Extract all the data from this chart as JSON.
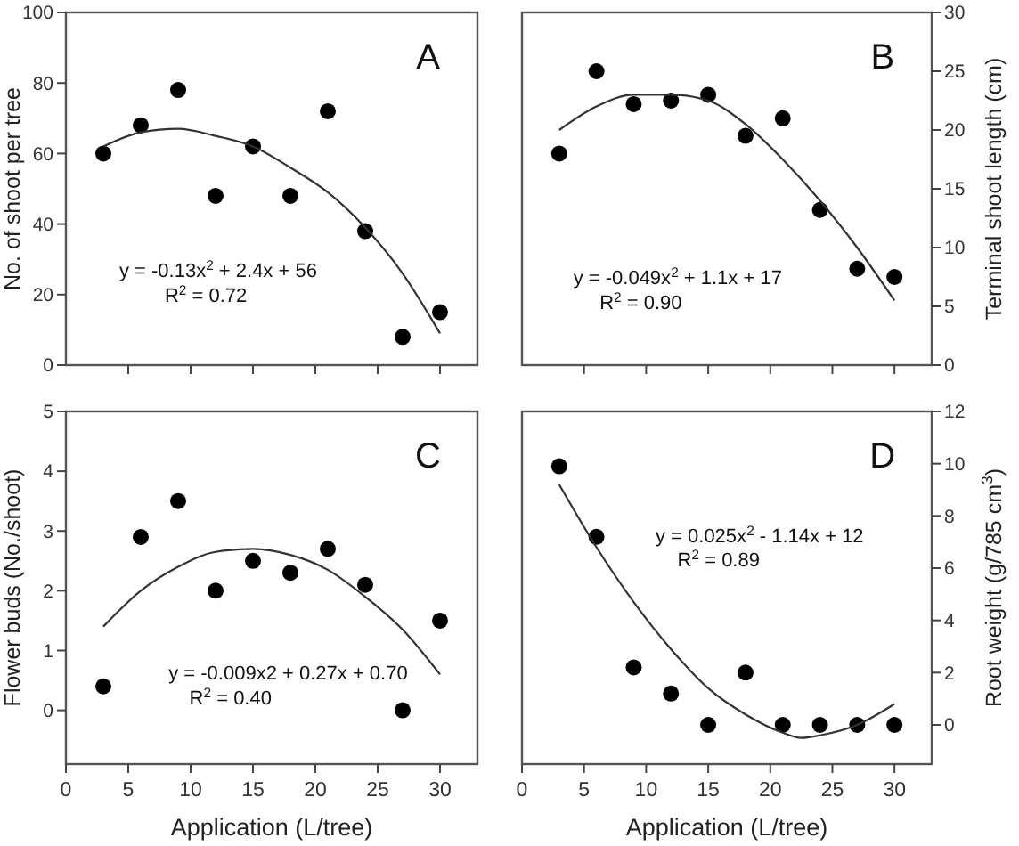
{
  "chart_data": [
    {
      "type": "scatter",
      "xlim": [
        0,
        33
      ],
      "xticks": [
        {
          "value": 5,
          "label": null
        },
        {
          "value": 10,
          "label": null
        },
        {
          "value": 15,
          "label": null
        },
        {
          "value": 20,
          "label": null
        },
        {
          "value": 25,
          "label": null
        },
        {
          "value": 30,
          "label": null
        }
      ],
      "ylim": [
        0,
        100
      ],
      "yticks": [
        0,
        20,
        40,
        60,
        80,
        100
      ],
      "ylabel": "No. of shoot per tree",
      "tick_labels": "y",
      "marker": "circle",
      "annotations": [
        "A",
        "y = -0.13x$^{2}$ + 2.4x + 56",
        "R$^{2}$ = 0.72"
      ],
      "series": [
        {
          "color": "#000000",
          "x": [
            3,
            6,
            9,
            12,
            15,
            18,
            21,
            24,
            27,
            30
          ],
          "values": [
            60,
            68,
            78,
            48,
            62,
            48,
            72,
            38,
            8,
            15
          ]
        },
        {
          "type": "line",
          "marker": "none",
          "color": "#333333",
          "x": [
            3,
            6,
            9,
            12,
            15,
            18,
            21,
            24,
            27,
            30
          ],
          "values": [
            62,
            66,
            67,
            65,
            62,
            56,
            49,
            39,
            26,
            9
          ]
        }
      ]
    },
    {
      "type": "scatter",
      "xlim": [
        0,
        33
      ],
      "xticks": [
        {
          "value": 5,
          "label": null
        },
        {
          "value": 10,
          "label": null
        },
        {
          "value": 15,
          "label": null
        },
        {
          "value": 20,
          "label": null
        },
        {
          "value": 25,
          "label": null
        },
        {
          "value": 30,
          "label": null
        }
      ],
      "y2lim": [
        0,
        30
      ],
      "y2ticks": [
        0,
        5,
        10,
        15,
        20,
        25,
        30
      ],
      "y2label": "Terminal shoot length (cm)",
      "tick_labels": "y",
      "marker": "circle",
      "annotations": [
        "B",
        "y = -0.049x$^{2}$ + 1.1x + 17",
        "R$^{2}$ = 0.90"
      ],
      "series": [
        {
          "axis": "y2",
          "color": "#000000",
          "x": [
            3,
            6,
            9,
            12,
            15,
            18,
            21,
            24,
            27,
            30
          ],
          "values": [
            18,
            25,
            22.2,
            22.5,
            23,
            19.5,
            21,
            13.2,
            8.2,
            7.5
          ]
        },
        {
          "type": "line",
          "marker": "none",
          "axis": "y2",
          "color": "#333333",
          "x": [
            3,
            6,
            9,
            12,
            15,
            18,
            21,
            24,
            27,
            30
          ],
          "values": [
            20,
            22,
            23,
            23,
            22.5,
            20.5,
            17.5,
            14,
            10,
            5.5
          ]
        }
      ]
    },
    {
      "type": "scatter",
      "xlim": [
        0,
        33
      ],
      "xticks": [
        0,
        5,
        10,
        15,
        20,
        25,
        30
      ],
      "ylim": [
        -0.9,
        5
      ],
      "yticks": [
        0,
        1,
        2,
        3,
        4,
        5
      ],
      "xlabel": "Application (L/tree)",
      "ylabel": "Flower buds (No./shoot)",
      "marker": "circle",
      "annotations": [
        "C",
        "y = -0.009x2 + 0.27x + 0.70",
        "R$^{2}$ = 0.40"
      ],
      "series": [
        {
          "color": "#000000",
          "x": [
            3,
            6,
            9,
            12,
            15,
            18,
            21,
            24,
            27,
            30
          ],
          "values": [
            0.4,
            2.9,
            3.5,
            2.0,
            2.5,
            2.3,
            2.7,
            2.1,
            0,
            1.5
          ]
        },
        {
          "type": "line",
          "marker": "none",
          "color": "#333333",
          "x": [
            3,
            6,
            9,
            12,
            15,
            18,
            21,
            24,
            27,
            30
          ],
          "values": [
            1.4,
            2.0,
            2.4,
            2.65,
            2.7,
            2.6,
            2.35,
            1.9,
            1.35,
            0.6
          ]
        }
      ]
    },
    {
      "type": "scatter",
      "xlim": [
        0,
        33
      ],
      "xticks": [
        0,
        5,
        10,
        15,
        20,
        25,
        30
      ],
      "y2lim": [
        -1.5,
        12
      ],
      "y2ticks": [
        0,
        2,
        4,
        6,
        8,
        10,
        12
      ],
      "xlabel": "Application (L/tree)",
      "y2label": "Root weight (g/785 cm$^{3}$)",
      "marker": "circle",
      "annotations": [
        "D",
        "y = 0.025x$^{2}$ - 1.14x + 12",
        "R$^{2}$ = 0.89"
      ],
      "series": [
        {
          "axis": "y2",
          "color": "#000000",
          "x": [
            3,
            6,
            9,
            12,
            15,
            18,
            21,
            24,
            27,
            30
          ],
          "values": [
            9.9,
            7.2,
            2.2,
            1.2,
            0,
            2,
            0,
            0,
            0,
            0
          ]
        },
        {
          "type": "line",
          "marker": "none",
          "axis": "y2",
          "color": "#333333",
          "x": [
            3,
            6,
            9,
            12,
            15,
            18,
            21,
            22.5,
            24,
            27,
            30
          ],
          "values": [
            9.2,
            6.8,
            4.7,
            2.9,
            1.4,
            0.4,
            -0.3,
            -0.5,
            -0.4,
            0,
            0.8
          ]
        }
      ]
    }
  ]
}
